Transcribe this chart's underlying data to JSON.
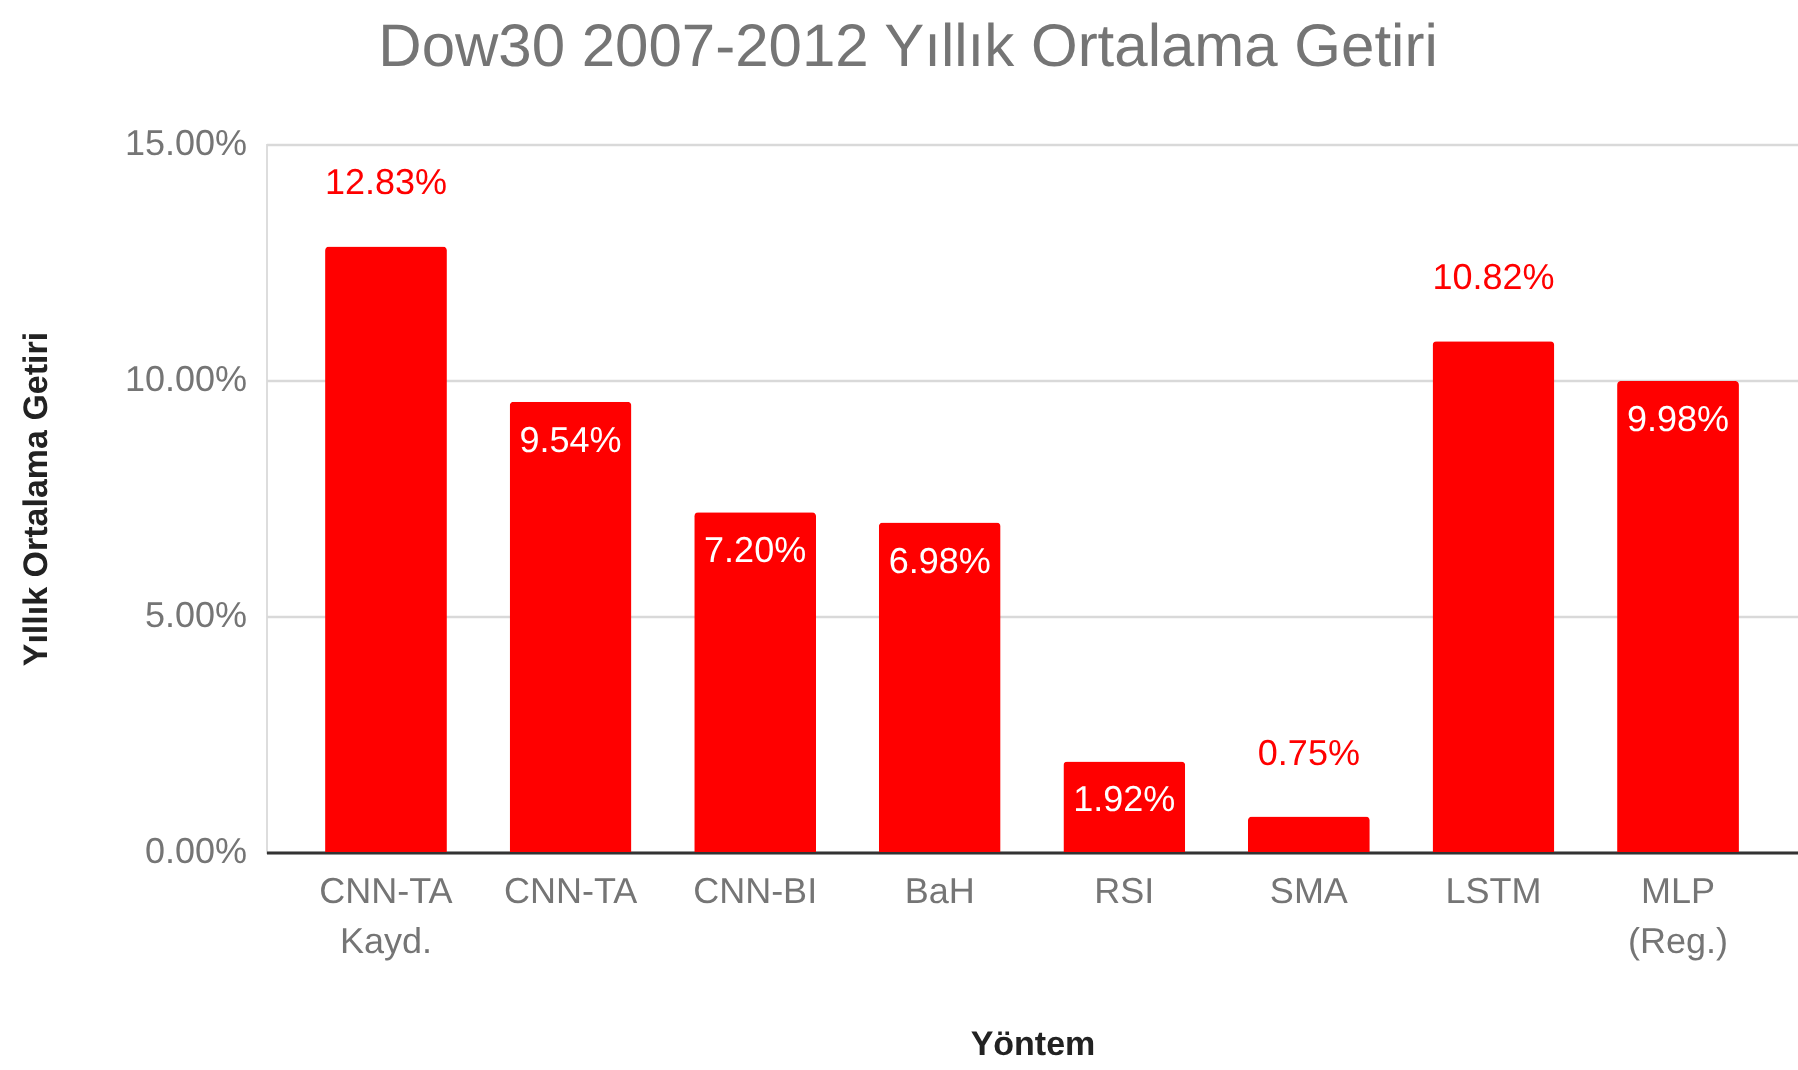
{
  "chart_data": {
    "type": "bar",
    "title": "Dow30 2007-2012 Yıllık Ortalama Getiri",
    "xlabel": "Yöntem",
    "ylabel": "Yıllık Ortalama Getiri",
    "categories": [
      "CNN-TA Kayd.",
      "CNN-TA",
      "CNN-BI",
      "BaH",
      "RSI",
      "SMA",
      "LSTM",
      "MLP (Reg.)"
    ],
    "values": [
      12.83,
      9.54,
      7.2,
      6.98,
      1.92,
      0.75,
      10.82,
      9.98
    ],
    "value_labels": [
      "12.83%",
      "9.54%",
      "7.20%",
      "6.98%",
      "1.92%",
      "0.75%",
      "10.82%",
      "9.98%"
    ],
    "color": "#ff0000",
    "ylim": [
      0,
      15
    ],
    "yticks": [
      {
        "value": 0,
        "label": "0.00%"
      },
      {
        "value": 5,
        "label": "5.00%"
      },
      {
        "value": 10,
        "label": "10.00%"
      },
      {
        "value": 15,
        "label": "15.00%"
      }
    ],
    "grid": "y"
  }
}
